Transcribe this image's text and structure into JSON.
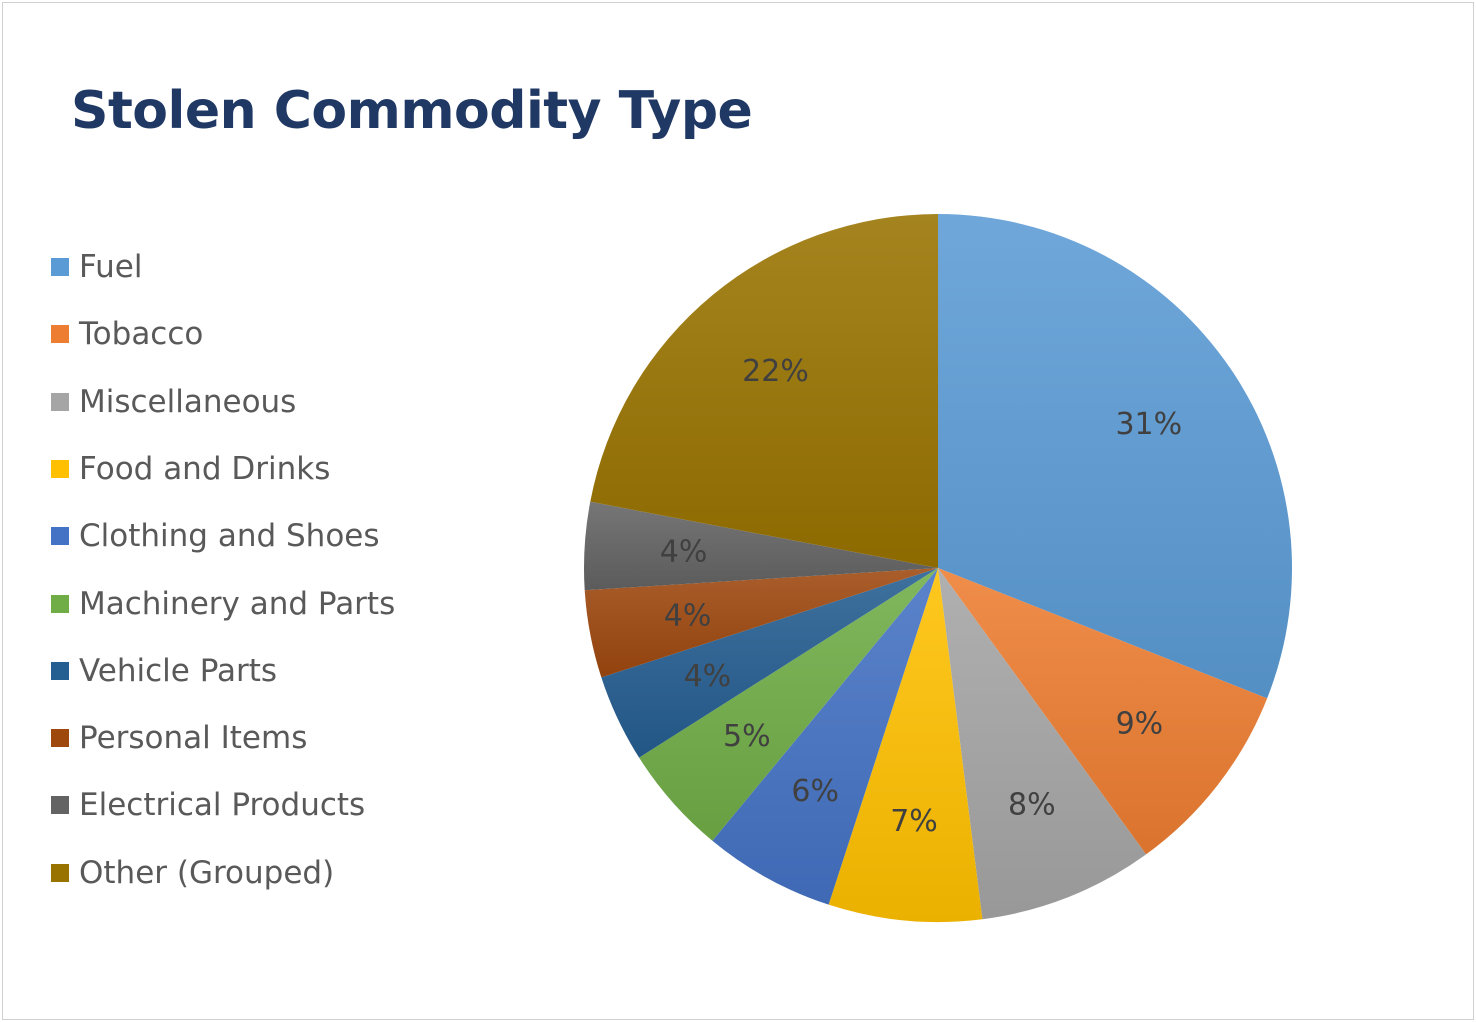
{
  "chart_data": {
    "type": "pie",
    "title": "Stolen Commodity Type",
    "legend_position": "left",
    "categories": [
      "Fuel",
      "Tobacco",
      "Miscellaneous",
      "Food and Drinks",
      "Clothing and Shoes",
      "Machinery and Parts",
      "Vehicle Parts",
      "Personal Items",
      "Electrical Products",
      "Other (Grouped)"
    ],
    "values": [
      31,
      9,
      8,
      7,
      6,
      5,
      4,
      4,
      4,
      22
    ],
    "data_labels": [
      "31%",
      "9%",
      "8%",
      "7%",
      "6%",
      "5%",
      "4%",
      "4%",
      "4%",
      "22%"
    ],
    "colors": [
      "#5b9bd5",
      "#ed7d31",
      "#a5a5a5",
      "#ffc000",
      "#4472c4",
      "#70ad47",
      "#255e91",
      "#9e480e",
      "#636363",
      "#997300"
    ]
  }
}
